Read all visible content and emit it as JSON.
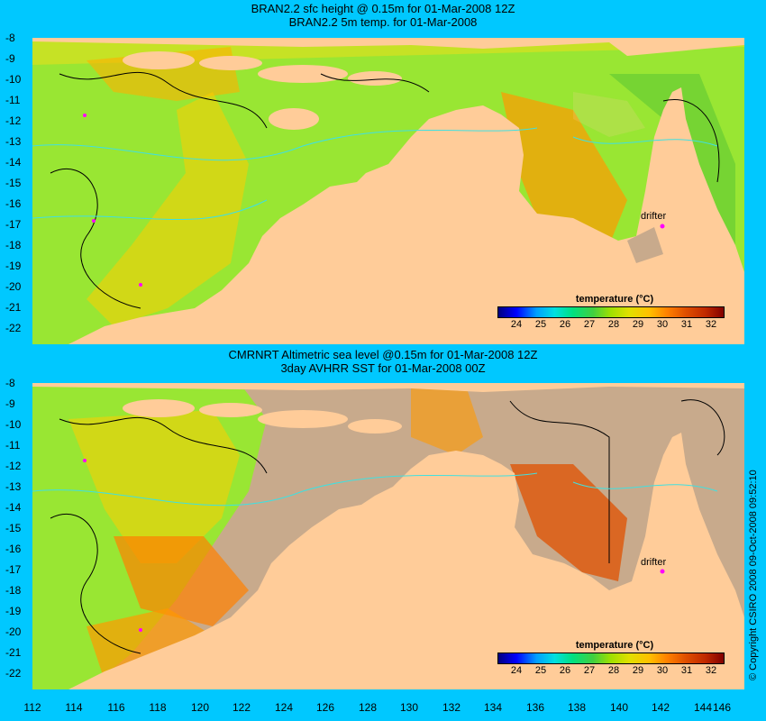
{
  "panel1": {
    "title_line1": "BRAN2.2 sfc height @ 0.15m for 01-Mar-2008 12Z",
    "title_line2": "BRAN2.2 5m temp. for 01-Mar-2008"
  },
  "panel2": {
    "title_line1": "CMRNRT Altimetric sea level  @0.15m  for 01-Mar-2008 12Z",
    "title_line2": "3day AVHRR SST for 01-Mar-2008 00Z"
  },
  "y_axis": {
    "labels": [
      "-8",
      "-9",
      "-10",
      "-11",
      "-12",
      "-13",
      "-14",
      "-15",
      "-16",
      "-17",
      "-18",
      "-19",
      "-20",
      "-21",
      "-22"
    ]
  },
  "x_axis": {
    "labels": [
      "112",
      "114",
      "116",
      "118",
      "120",
      "122",
      "124",
      "126",
      "128",
      "130",
      "132",
      "134",
      "136",
      "138",
      "140",
      "142",
      "144",
      "146"
    ]
  },
  "legend": {
    "title": "temperature (°C)",
    "ticks": [
      "24",
      "25",
      "26",
      "27",
      "28",
      "29",
      "30",
      "31",
      "32"
    ]
  },
  "marker_label": "drifter",
  "copyright": "© Copyright CSIRO 2008   09-Oct-2008 09:52:10",
  "colors": {
    "background": "#00c8ff",
    "land": "#ffcc99",
    "ocean_warm": "#ff9900",
    "ocean_mid": "#99e633",
    "no_data": "#c8aa8c",
    "drifter": "#ff00ff"
  }
}
